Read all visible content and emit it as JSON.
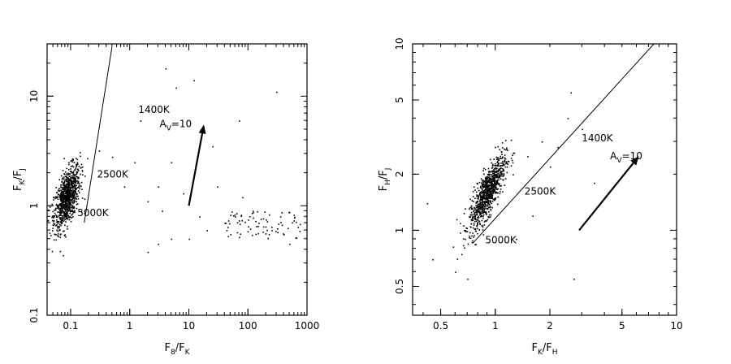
{
  "chart_data": [
    {
      "type": "scatter",
      "xscale": "log",
      "yscale": "log",
      "xlim": [
        0.04,
        1000
      ],
      "ylim": [
        0.1,
        30
      ],
      "xticks": [
        0.1,
        1,
        10,
        100,
        1000
      ],
      "xtick_labels": [
        "0.1",
        "1",
        "10",
        "100",
        "1000"
      ],
      "yticks": [
        0.1,
        1,
        10
      ],
      "ytick_labels": [
        "0.1",
        "1",
        "10"
      ],
      "xlabel": {
        "main": "F",
        "sub1": "8",
        "sep": "/F",
        "sub2": "K"
      },
      "ylabel": {
        "main": "F",
        "sub1": "K",
        "sep": "/F",
        "sub2": "J"
      },
      "cluster": {
        "center_x": 0.085,
        "center_y": 1.2,
        "n": 900
      },
      "sparse_points": [
        [
          0.3,
          3.2
        ],
        [
          0.5,
          2.8
        ],
        [
          0.8,
          1.5
        ],
        [
          1.2,
          2.5
        ],
        [
          1.5,
          6
        ],
        [
          2,
          1.1
        ],
        [
          3,
          1.5
        ],
        [
          3.5,
          0.9
        ],
        [
          4,
          18
        ],
        [
          5,
          0.5
        ],
        [
          6,
          12
        ],
        [
          8,
          1.3
        ],
        [
          12,
          14
        ],
        [
          15,
          0.8
        ],
        [
          20,
          0.6
        ],
        [
          25,
          3.5
        ],
        [
          30,
          1.5
        ],
        [
          40,
          0.7
        ],
        [
          50,
          0.55
        ],
        [
          60,
          0.8
        ],
        [
          70,
          6
        ],
        [
          80,
          1.2
        ],
        [
          100,
          0.65
        ],
        [
          120,
          0.9
        ],
        [
          150,
          0.7
        ],
        [
          200,
          0.75
        ],
        [
          250,
          0.6
        ],
        [
          300,
          11
        ],
        [
          350,
          0.8
        ],
        [
          400,
          0.55
        ],
        [
          500,
          0.45
        ],
        [
          3,
          0.45
        ],
        [
          2,
          0.38
        ],
        [
          10,
          0.5
        ],
        [
          5,
          2.5
        ]
      ],
      "field_cluster": {
        "x_range": [
          40,
          800
        ],
        "y_range": [
          0.5,
          0.9
        ],
        "n": 70
      },
      "locus": {
        "from": [
          0.17,
          0.7
        ],
        "to": [
          0.5,
          28
        ]
      },
      "reddening_vector": {
        "from": [
          10,
          1.0
        ],
        "to": [
          18,
          5.5
        ]
      },
      "annotations": [
        {
          "text": "1400K",
          "x": 1.4,
          "y": 7.0
        },
        {
          "text": "2500K",
          "x": 0.28,
          "y": 1.8
        },
        {
          "text": "5000K",
          "x": 0.13,
          "y": 0.8
        },
        {
          "text": "A",
          "sub": "V",
          "after": "=10",
          "x": 3.2,
          "y": 5.2
        }
      ]
    },
    {
      "type": "scatter",
      "xscale": "log",
      "yscale": "log",
      "xlim": [
        0.35,
        10
      ],
      "ylim": [
        0.35,
        10
      ],
      "xticks": [
        0.5,
        1,
        2,
        5,
        10
      ],
      "xtick_labels": [
        "0.5",
        "1",
        "2",
        "5",
        "10"
      ],
      "yticks": [
        0.5,
        1,
        2,
        5,
        10
      ],
      "ytick_labels": [
        "0.5",
        "1",
        "2",
        "5",
        "10"
      ],
      "xlabel": {
        "main": "F",
        "sub1": "K",
        "sep": "/F",
        "sub2": "H"
      },
      "ylabel": {
        "main": "F",
        "sub1": "H",
        "sep": "/F",
        "sub2": "J"
      },
      "cluster": {
        "center_x": 0.9,
        "center_y": 1.6,
        "n": 900
      },
      "sparse_points": [
        [
          0.42,
          1.4
        ],
        [
          0.45,
          0.7
        ],
        [
          1.5,
          2.5
        ],
        [
          1.8,
          3
        ],
        [
          2,
          2.2
        ],
        [
          2.5,
          4
        ],
        [
          2.6,
          5.5
        ],
        [
          3,
          3.5
        ],
        [
          3.5,
          1.8
        ],
        [
          1.3,
          0.9
        ],
        [
          2.7,
          0.55
        ],
        [
          1.6,
          1.2
        ],
        [
          0.6,
          0.6
        ],
        [
          0.7,
          0.55
        ],
        [
          2.2,
          2.8
        ]
      ],
      "locus": {
        "from": [
          0.75,
          0.85
        ],
        "to": [
          7.5,
          10
        ]
      },
      "reddening_vector": {
        "from": [
          2.9,
          1.0
        ],
        "to": [
          6.2,
          2.5
        ]
      },
      "annotations": [
        {
          "text": "1400K",
          "x": 3.0,
          "y": 3.0
        },
        {
          "text": "2500K",
          "x": 1.45,
          "y": 1.55
        },
        {
          "text": "5000K",
          "x": 0.88,
          "y": 0.85
        },
        {
          "text": "A",
          "sub": "V",
          "after": "=10",
          "x": 4.3,
          "y": 2.4
        }
      ]
    }
  ]
}
